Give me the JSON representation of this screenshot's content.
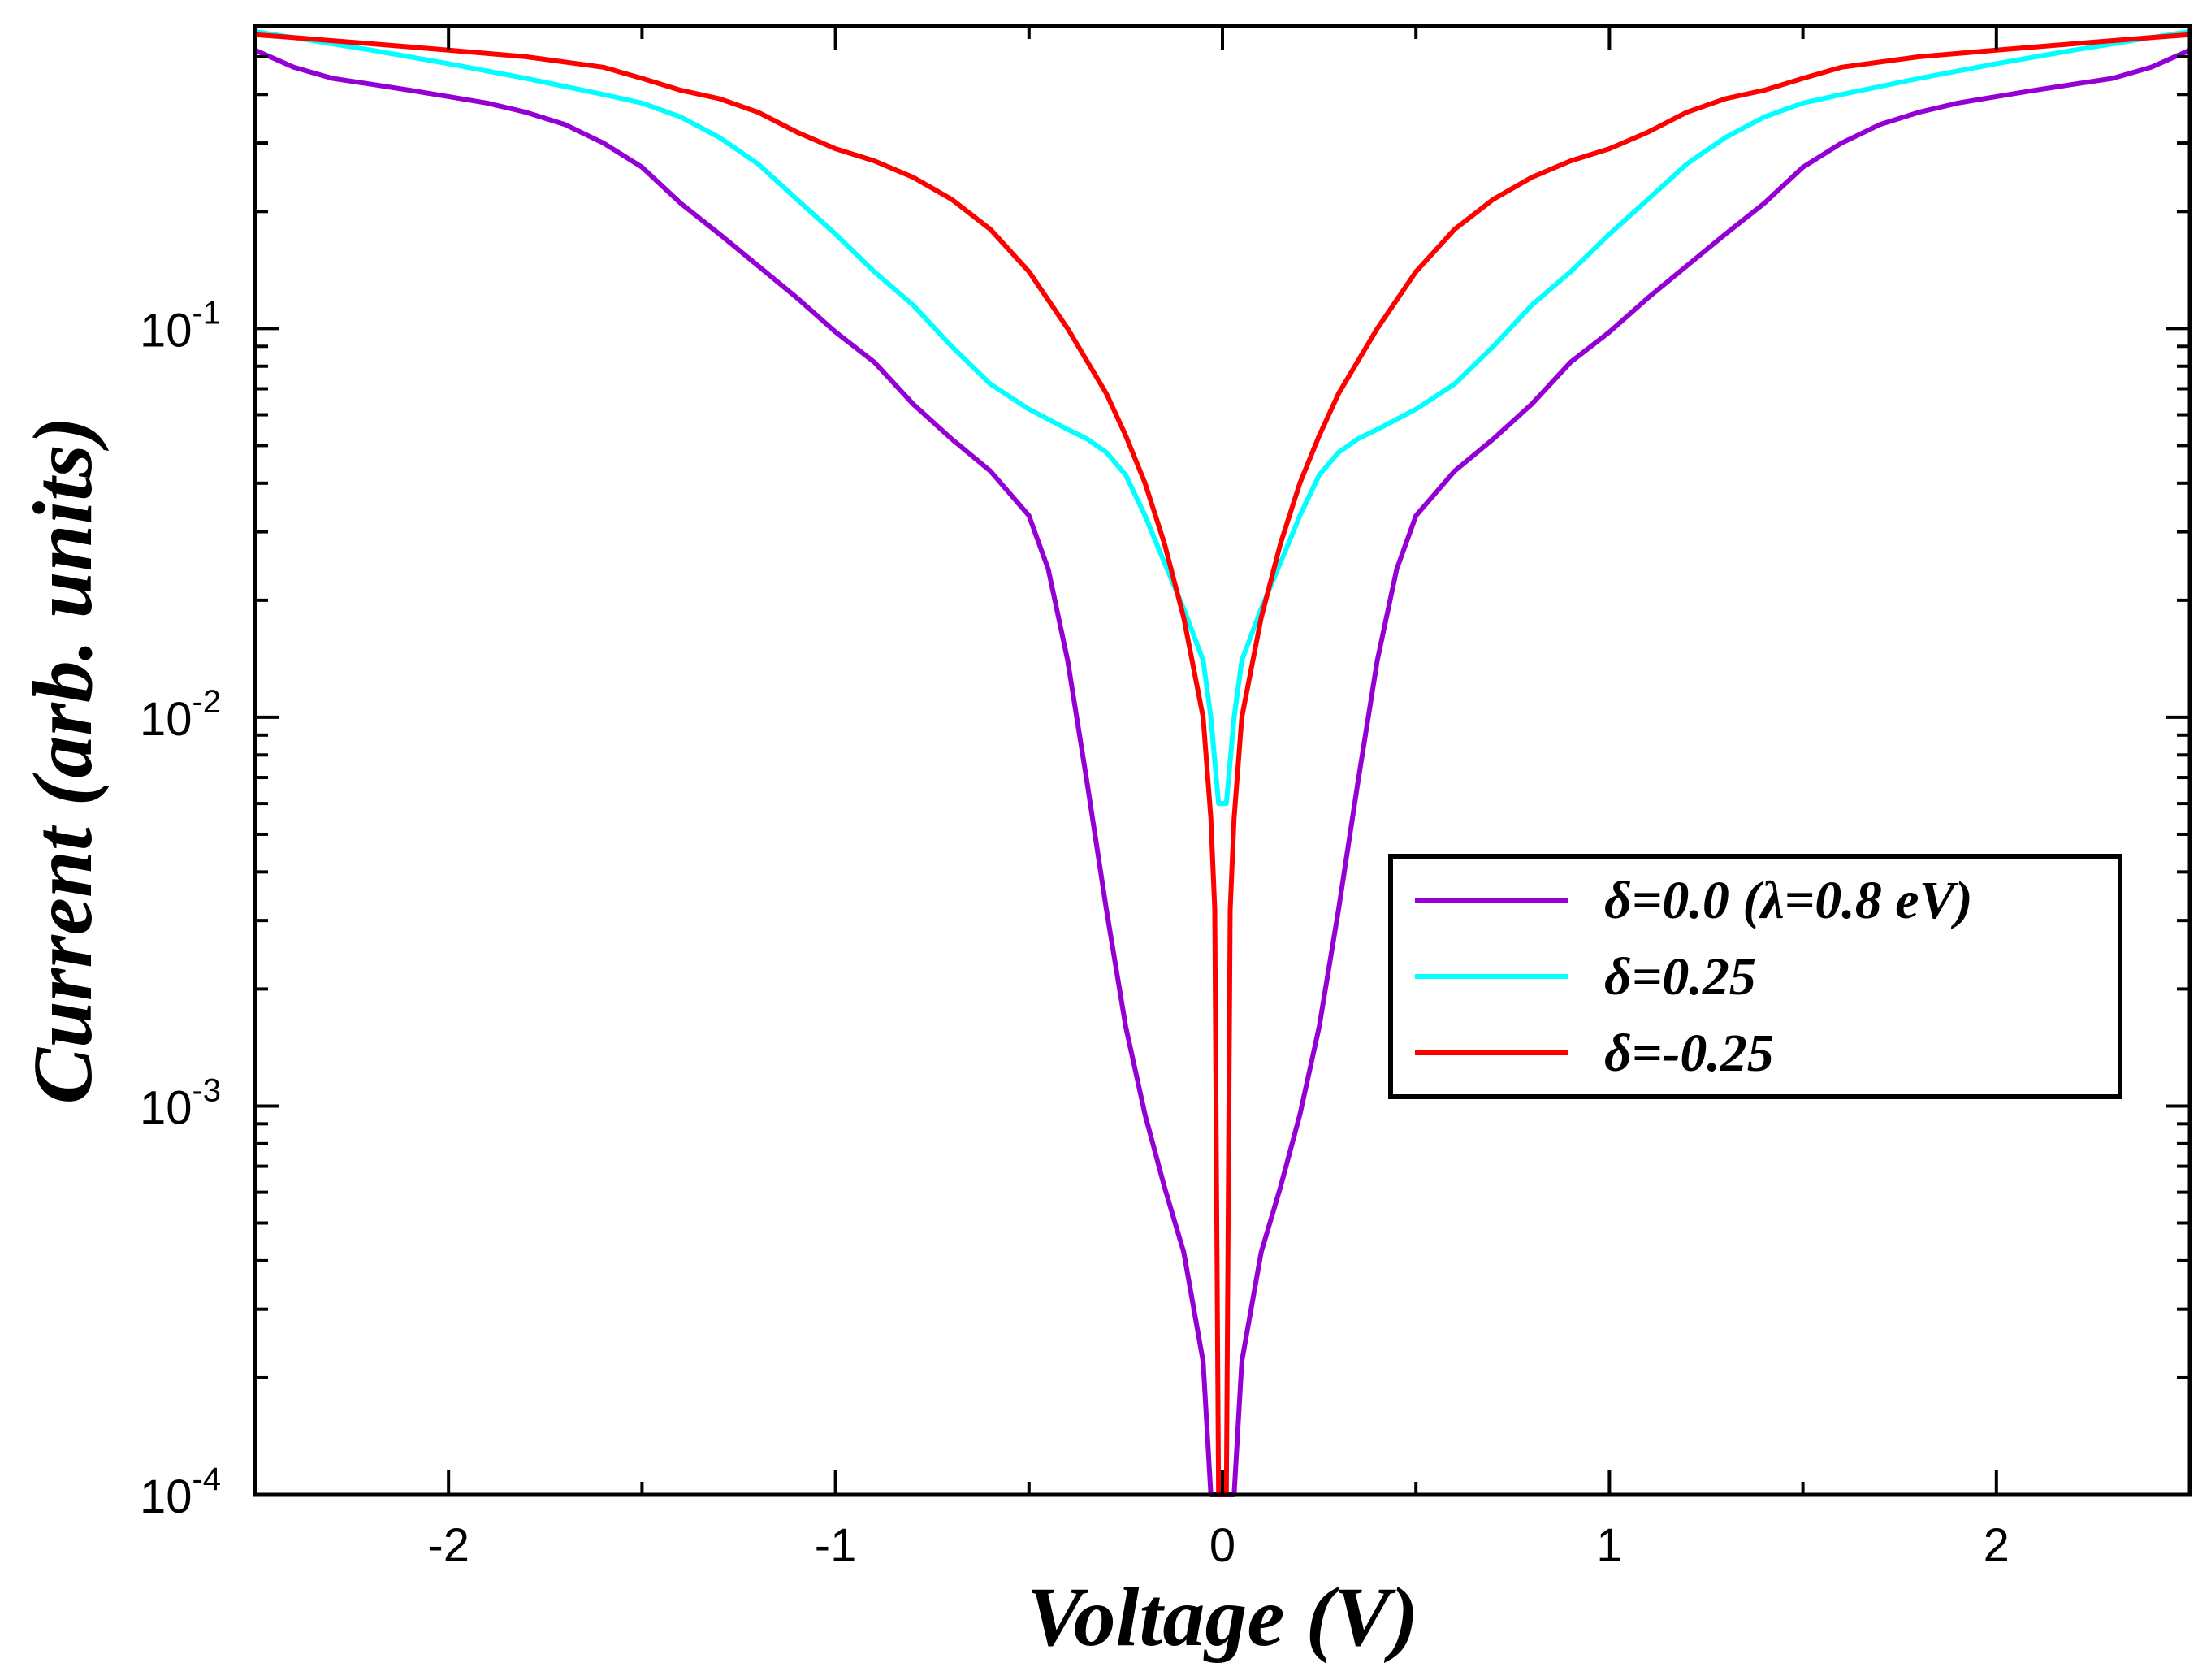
{
  "chart_data": {
    "type": "line",
    "title": "",
    "xlabel": "Voltage (V)",
    "ylabel": "Current (arb. units)",
    "xlim": [
      -2.5,
      2.5
    ],
    "ylim": [
      0.0001,
      0.6
    ],
    "yscale": "log",
    "x_ticks": [
      -2,
      -1,
      0,
      1,
      2
    ],
    "x_tick_labels": [
      "-2",
      "-1",
      "0",
      "1",
      "2"
    ],
    "y_ticks": [
      0.0001,
      0.001,
      0.01,
      0.1
    ],
    "y_tick_labels": [
      {
        "mantissa": "10",
        "exponent": "-4"
      },
      {
        "mantissa": "10",
        "exponent": "-3"
      },
      {
        "mantissa": "10",
        "exponent": "-2"
      },
      {
        "mantissa": "10",
        "exponent": "-1"
      }
    ],
    "grid": false,
    "legend_position": "center-right",
    "series": [
      {
        "name": "δ=0.0  (λ=0.8 eV)",
        "color": "#9400d3",
        "x": [
          0.03,
          0.05,
          0.1,
          0.15,
          0.2,
          0.25,
          0.3,
          0.35,
          0.4,
          0.45,
          0.5,
          0.6,
          0.7,
          0.8,
          0.9,
          1.0,
          1.1,
          1.2,
          1.3,
          1.4,
          1.5,
          1.6,
          1.7,
          1.8,
          1.9,
          2.0,
          2.1,
          2.2,
          2.3,
          2.4,
          2.5
        ],
        "y": [
          0.0001,
          0.00022,
          0.00042,
          0.00062,
          0.00095,
          0.0016,
          0.0032,
          0.0068,
          0.014,
          0.024,
          0.033,
          0.043,
          0.052,
          0.064,
          0.082,
          0.098,
          0.12,
          0.145,
          0.175,
          0.21,
          0.26,
          0.3,
          0.335,
          0.36,
          0.38,
          0.395,
          0.41,
          0.425,
          0.44,
          0.47,
          0.52
        ]
      },
      {
        "name": "δ=0.25",
        "color": "#00ffff",
        "x": [
          0.01,
          0.03,
          0.05,
          0.1,
          0.15,
          0.2,
          0.25,
          0.3,
          0.35,
          0.4,
          0.5,
          0.6,
          0.7,
          0.8,
          0.9,
          1.0,
          1.1,
          1.2,
          1.3,
          1.4,
          1.5,
          1.6,
          1.8,
          2.0,
          2.2,
          2.4,
          2.5
        ],
        "y": [
          0.006,
          0.01,
          0.014,
          0.019,
          0.025,
          0.033,
          0.042,
          0.048,
          0.052,
          0.055,
          0.062,
          0.072,
          0.09,
          0.115,
          0.14,
          0.175,
          0.215,
          0.265,
          0.31,
          0.35,
          0.38,
          0.4,
          0.44,
          0.48,
          0.52,
          0.56,
          0.58
        ]
      },
      {
        "name": "δ=-0.25",
        "color": "#ff0000",
        "x": [
          0.01,
          0.02,
          0.03,
          0.05,
          0.1,
          0.15,
          0.2,
          0.25,
          0.3,
          0.4,
          0.5,
          0.6,
          0.7,
          0.8,
          0.9,
          1.0,
          1.1,
          1.2,
          1.3,
          1.4,
          1.5,
          1.6,
          1.8,
          2.0,
          2.2,
          2.4,
          2.5
        ],
        "y": [
          0.0001,
          0.0032,
          0.0055,
          0.01,
          0.018,
          0.028,
          0.04,
          0.053,
          0.068,
          0.1,
          0.14,
          0.18,
          0.215,
          0.245,
          0.27,
          0.29,
          0.32,
          0.36,
          0.39,
          0.41,
          0.44,
          0.47,
          0.5,
          0.52,
          0.54,
          0.56,
          0.57
        ]
      }
    ]
  }
}
